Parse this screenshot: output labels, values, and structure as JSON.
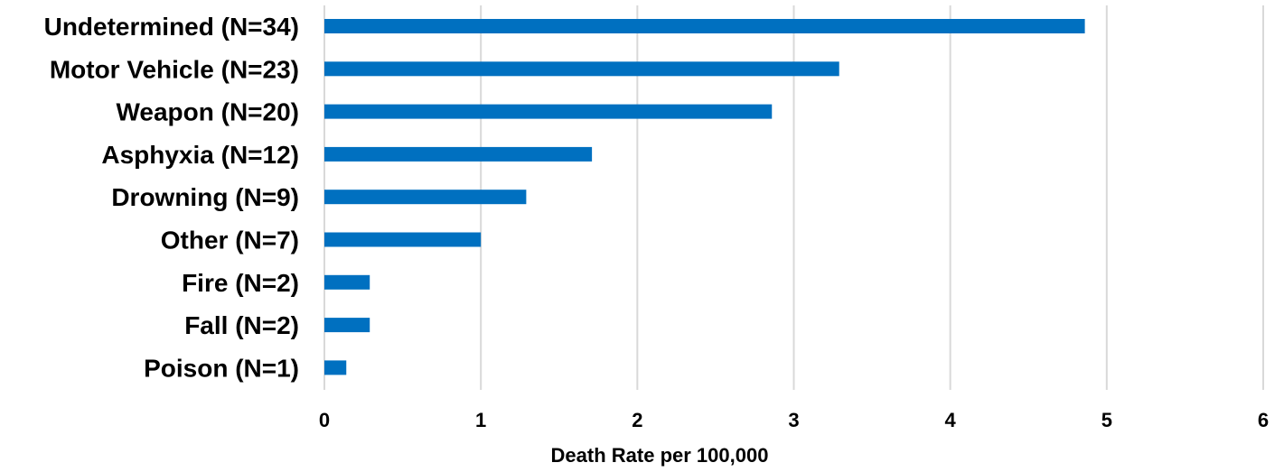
{
  "chart_data": {
    "type": "bar",
    "orientation": "horizontal",
    "categories": [
      "Undetermined (N=34)",
      "Motor Vehicle (N=23)",
      "Weapon (N=20)",
      "Asphyxia (N=12)",
      "Drowning (N=9)",
      "Other (N=7)",
      "Fire (N=2)",
      "Fall (N=2)",
      "Poison (N=1)"
    ],
    "values": [
      4.86,
      3.29,
      2.86,
      1.71,
      1.29,
      1.0,
      0.29,
      0.29,
      0.14
    ],
    "title": "",
    "xlabel": "Death Rate per 100,000",
    "ylabel": "",
    "xlim": [
      0,
      6
    ],
    "xticks": [
      "0",
      "1",
      "2",
      "3",
      "4",
      "5",
      "6"
    ],
    "grid": "vertical",
    "legend": "none",
    "bar_color": "#0070c0"
  }
}
